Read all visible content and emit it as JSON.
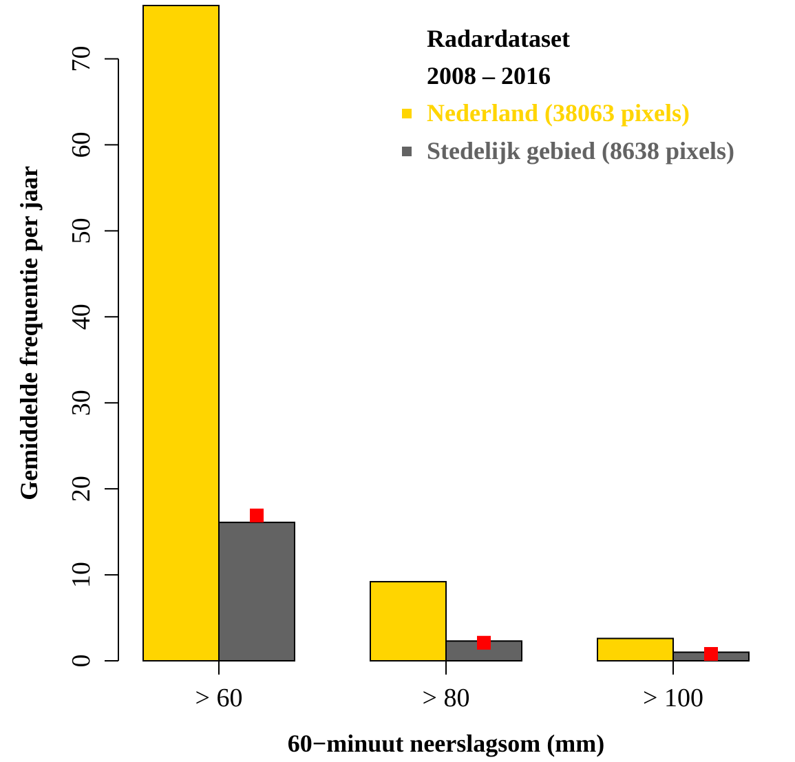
{
  "chart_data": {
    "type": "bar",
    "categories": [
      "> 60",
      "> 80",
      "> 100"
    ],
    "series": [
      {
        "name": "Nederland (38063 pixels)",
        "values": [
          76.2,
          9.2,
          2.6
        ],
        "color": "#FFD500"
      },
      {
        "name": "Stedelijk gebied (8638 pixels)",
        "values": [
          16.1,
          2.3,
          1.0
        ],
        "color": "#636363"
      }
    ],
    "markers": {
      "values": [
        16.9,
        2.1,
        0.8
      ],
      "color": "#FF0000"
    },
    "xlabel": "60−minuut neerslagsom (mm)",
    "ylabel": "Gemiddelde frequentie per jaar",
    "ylim": [
      0,
      76.2
    ],
    "yticks": [
      0,
      10,
      20,
      30,
      40,
      50,
      60,
      70
    ],
    "legend": {
      "title_lines": [
        "Radardataset",
        "2008 – 2016"
      ],
      "placement": "top-right"
    },
    "grid": false
  }
}
